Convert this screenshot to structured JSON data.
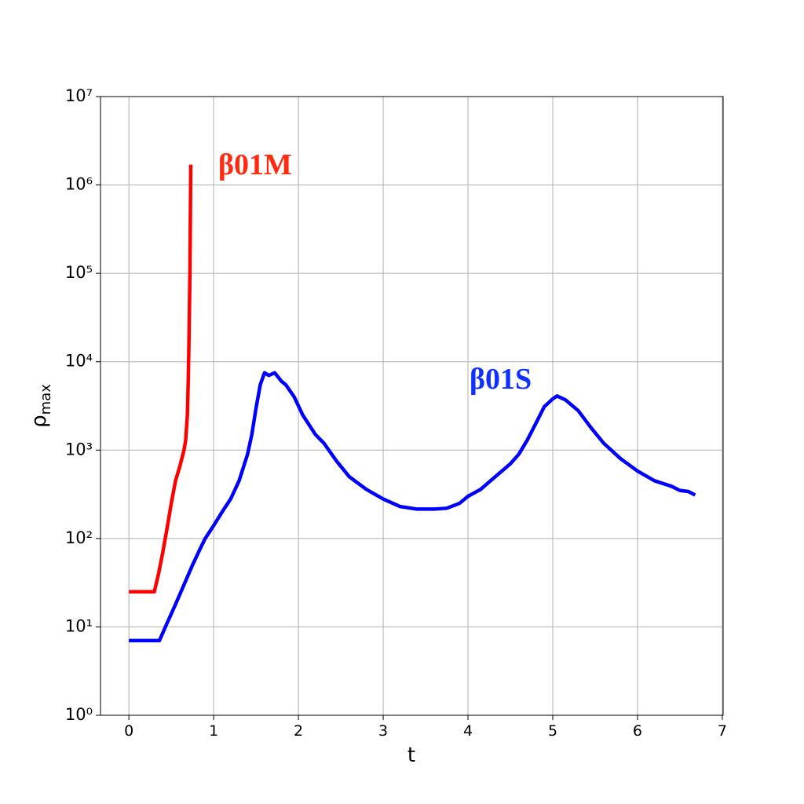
{
  "chart_data": {
    "type": "line",
    "xlabel": "t",
    "ylabel": "ρ",
    "ylabel_subscript": "max",
    "xlim": [
      -0.335,
      7.01
    ],
    "ylim": [
      1,
      10000000
    ],
    "log_y": true,
    "grid": true,
    "xticks": [
      0,
      1,
      2,
      3,
      4,
      5,
      6,
      7
    ],
    "yticks": [
      {
        "value": 1,
        "label": "10⁰"
      },
      {
        "value": 10,
        "label": "10¹"
      },
      {
        "value": 100,
        "label": "10²"
      },
      {
        "value": 1000,
        "label": "10³"
      },
      {
        "value": 10000,
        "label": "10⁴"
      },
      {
        "value": 100000,
        "label": "10⁵"
      },
      {
        "value": 1000000,
        "label": "10⁶"
      },
      {
        "value": 10000000,
        "label": "10⁷"
      }
    ],
    "annotations": [
      {
        "text": "β01M",
        "color": "#ff2a10"
      },
      {
        "text": "β01S",
        "color": "#1030ff"
      }
    ],
    "series": [
      {
        "color": "#ff0000",
        "x": [
          0,
          0.3,
          0.35,
          0.4,
          0.45,
          0.5,
          0.55,
          0.6,
          0.65,
          0.67,
          0.69,
          0.7,
          0.71,
          0.72,
          0.73
        ],
        "values": [
          25,
          25,
          40,
          70,
          130,
          250,
          450,
          650,
          1000,
          1300,
          2500,
          6000,
          20000,
          100000,
          1700000
        ]
      },
      {
        "color": "#0000ff",
        "x": [
          0,
          0.36,
          0.45,
          0.55,
          0.65,
          0.75,
          0.85,
          0.9,
          1.0,
          1.1,
          1.2,
          1.3,
          1.4,
          1.45,
          1.5,
          1.55,
          1.6,
          1.65,
          1.72,
          1.8,
          1.85,
          1.95,
          2.05,
          2.2,
          2.3,
          2.45,
          2.6,
          2.8,
          3.0,
          3.2,
          3.4,
          3.6,
          3.75,
          3.9,
          4.0,
          4.15,
          4.3,
          4.5,
          4.6,
          4.7,
          4.8,
          4.9,
          5.0,
          5.05,
          5.15,
          5.3,
          5.45,
          5.6,
          5.8,
          6.0,
          6.2,
          6.4,
          6.5,
          6.6,
          6.68
        ],
        "values": [
          7,
          7,
          11,
          18,
          30,
          50,
          80,
          100,
          140,
          200,
          280,
          450,
          900,
          1500,
          3000,
          5500,
          7500,
          7000,
          7500,
          6000,
          5500,
          4000,
          2500,
          1500,
          1200,
          750,
          500,
          360,
          280,
          230,
          215,
          215,
          220,
          250,
          300,
          360,
          480,
          700,
          900,
          1300,
          2000,
          3100,
          3800,
          4100,
          3700,
          2800,
          1800,
          1200,
          800,
          580,
          450,
          390,
          350,
          340,
          310
        ]
      }
    ]
  }
}
